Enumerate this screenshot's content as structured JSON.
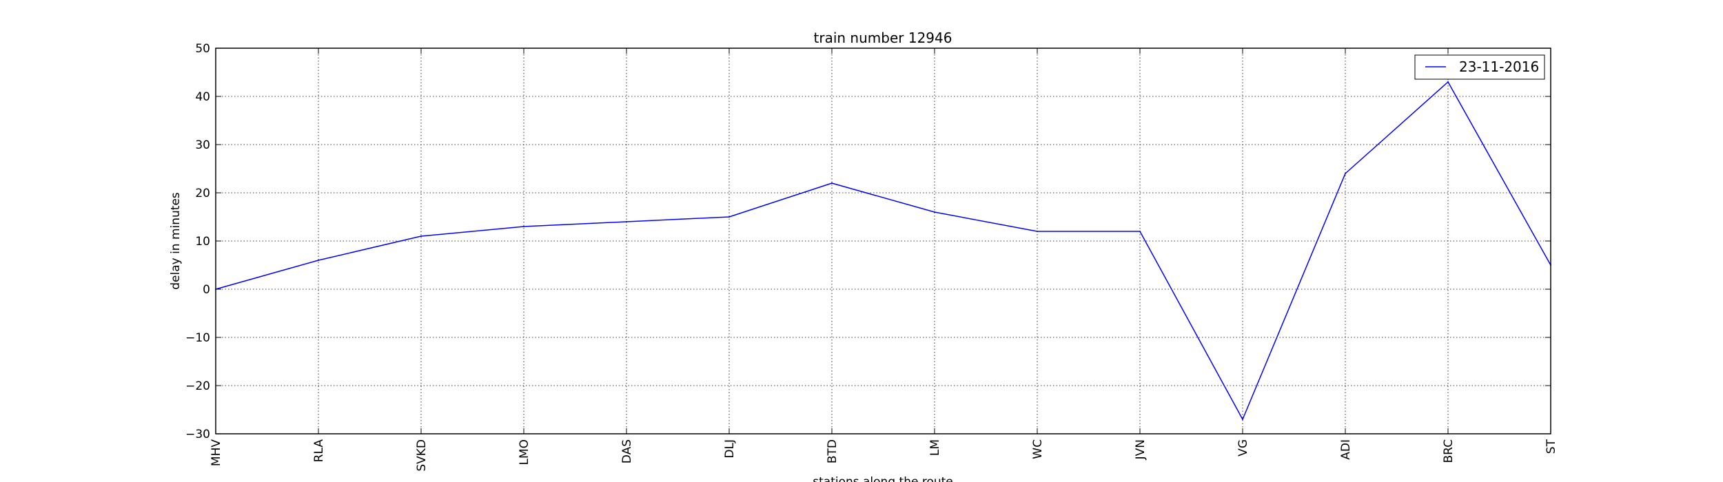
{
  "chart_data": {
    "type": "line",
    "title": "train number 12946",
    "xlabel": "stations along the route",
    "ylabel": "delay in minutes",
    "categories": [
      "MHV",
      "RLA",
      "SVKD",
      "LMO",
      "DAS",
      "DLJ",
      "BTD",
      "LM",
      "WC",
      "JVN",
      "VG",
      "ADI",
      "BRC",
      "ST"
    ],
    "series": [
      {
        "name": "23-11-2016",
        "color": "#0000ff",
        "values": [
          0,
          6,
          11,
          13,
          14,
          15,
          22,
          16,
          12,
          12,
          -27,
          24,
          43,
          5
        ]
      }
    ],
    "ylim": [
      -30,
      50
    ],
    "yticks": [
      -30,
      -20,
      -10,
      0,
      10,
      20,
      30,
      40,
      50
    ],
    "grid": true,
    "legend": "top-right"
  }
}
